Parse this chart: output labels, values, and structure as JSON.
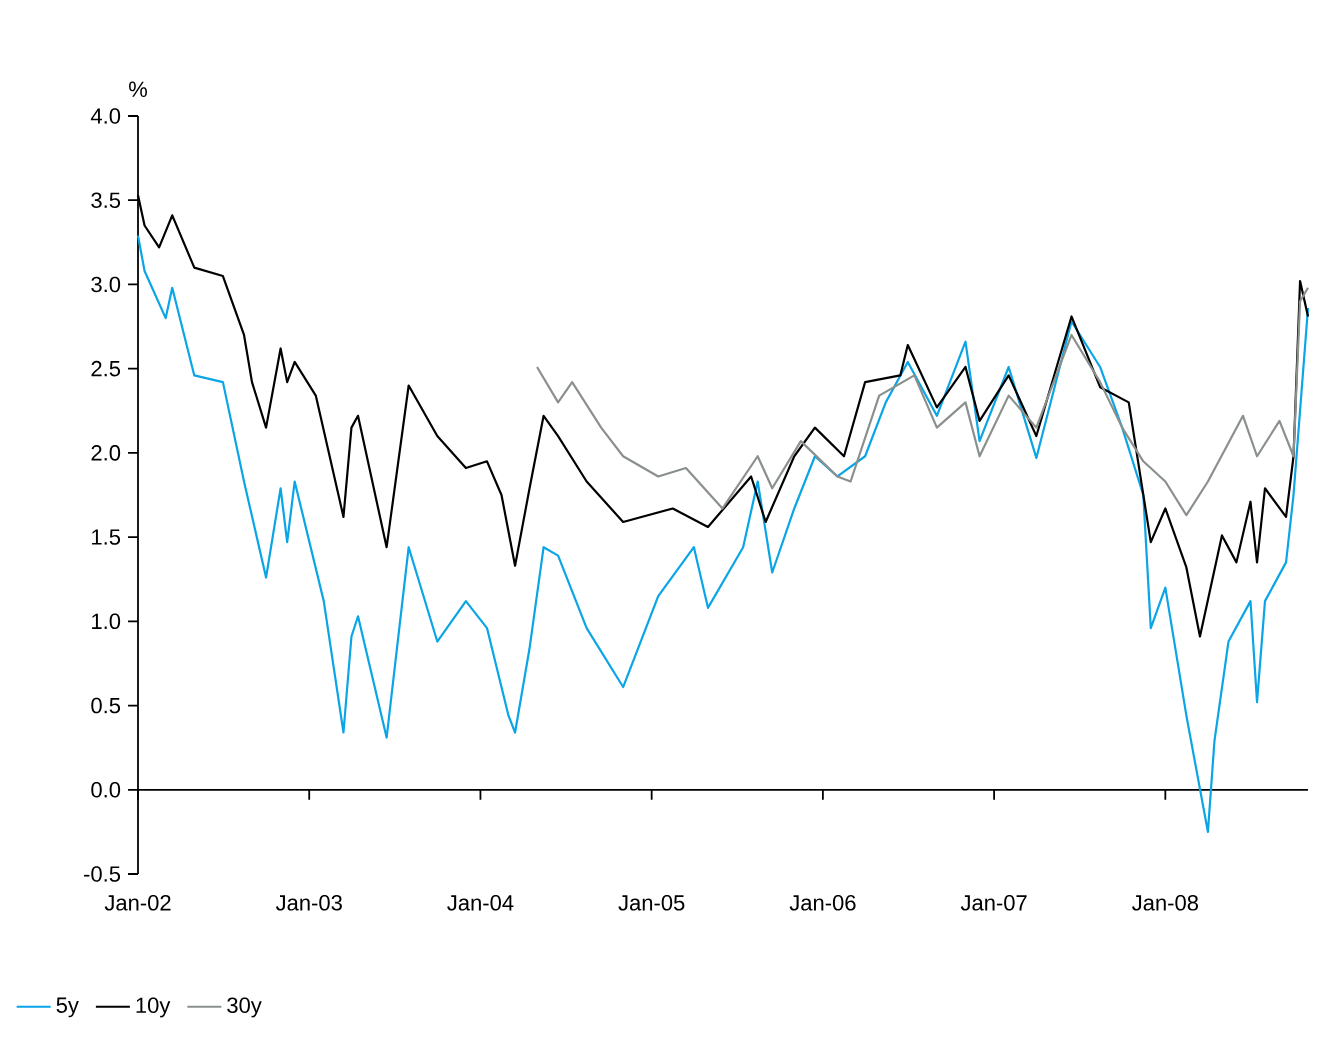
{
  "chart_data": {
    "type": "line",
    "ylabel": "%",
    "xlim": [
      "2002-01-01",
      "2008-11-01"
    ],
    "xticks": [
      {
        "value": "2002-01-01",
        "label": "Jan-02"
      },
      {
        "value": "2003-01-01",
        "label": "Jan-03"
      },
      {
        "value": "2004-01-01",
        "label": "Jan-04"
      },
      {
        "value": "2005-01-01",
        "label": "Jan-05"
      },
      {
        "value": "2006-01-01",
        "label": "Jan-06"
      },
      {
        "value": "2007-01-01",
        "label": "Jan-07"
      },
      {
        "value": "2008-01-01",
        "label": "Jan-08"
      }
    ],
    "ylim": [
      -0.5,
      4.0
    ],
    "yticks": [
      {
        "value": -0.5,
        "label": "-0.5"
      },
      {
        "value": 0,
        "label": "0.0"
      },
      {
        "value": 0.5,
        "label": "0.5"
      },
      {
        "value": 1,
        "label": "1.0"
      },
      {
        "value": 1.5,
        "label": "1.5"
      },
      {
        "value": 2,
        "label": "2.0"
      },
      {
        "value": 2.5,
        "label": "2.5"
      },
      {
        "value": 3,
        "label": "3.0"
      },
      {
        "value": 3.5,
        "label": "3.5"
      },
      {
        "value": 4,
        "label": "4.0"
      }
    ],
    "legend": "bottom left",
    "marker": "none",
    "line_style": "solid",
    "series": [
      {
        "name": "5y",
        "color": "#0aa5e6",
        "x": [
          "2002-01-01",
          "2002-01-15",
          "2002-03-01",
          "2002-03-15",
          "2002-05-01",
          "2002-07-01",
          "2002-08-15",
          "2002-10-01",
          "2002-11-01",
          "2002-11-15",
          "2002-12-01",
          "2003-02-01",
          "2003-03-15",
          "2003-04-01",
          "2003-04-15",
          "2003-06-15",
          "2003-08-01",
          "2003-10-01",
          "2003-12-01",
          "2004-01-15",
          "2004-03-01",
          "2004-03-15",
          "2004-04-15",
          "2004-05-15",
          "2004-06-15",
          "2004-08-15",
          "2004-11-01",
          "2005-01-15",
          "2005-04-01",
          "2005-05-01",
          "2005-07-15",
          "2005-08-15",
          "2005-09-15",
          "2005-11-01",
          "2005-12-15",
          "2006-02-01",
          "2006-04-01",
          "2006-05-15",
          "2006-07-01",
          "2006-09-01",
          "2006-11-01",
          "2006-12-01",
          "2007-02-01",
          "2007-04-01",
          "2007-06-15",
          "2007-08-15",
          "2007-10-01",
          "2007-11-15",
          "2007-12-01",
          "2008-01-01",
          "2008-02-15",
          "2008-04-01",
          "2008-04-15",
          "2008-05-15",
          "2008-07-01",
          "2008-07-15",
          "2008-08-01",
          "2008-09-15",
          "2008-10-01",
          "2008-11-01"
        ],
        "values": [
          3.29,
          3.08,
          2.8,
          2.98,
          2.46,
          2.42,
          1.83,
          1.26,
          1.79,
          1.47,
          1.83,
          1.12,
          0.34,
          0.91,
          1.03,
          0.31,
          1.44,
          0.88,
          1.12,
          0.96,
          0.44,
          0.34,
          0.84,
          1.44,
          1.39,
          0.96,
          0.61,
          1.15,
          1.44,
          1.08,
          1.44,
          1.83,
          1.29,
          1.67,
          1.98,
          1.86,
          1.98,
          2.3,
          2.54,
          2.22,
          2.66,
          2.07,
          2.51,
          1.97,
          2.78,
          2.51,
          2.15,
          1.75,
          0.96,
          1.2,
          0.44,
          -0.25,
          0.29,
          0.88,
          1.12,
          0.52,
          1.12,
          1.35,
          1.75,
          2.86
        ]
      },
      {
        "name": "10y",
        "color": "#000000",
        "x": [
          "2002-01-01",
          "2002-01-15",
          "2002-02-15",
          "2002-03-15",
          "2002-05-01",
          "2002-07-01",
          "2002-08-15",
          "2002-09-01",
          "2002-10-01",
          "2002-11-01",
          "2002-11-15",
          "2002-12-01",
          "2003-01-15",
          "2003-03-15",
          "2003-04-01",
          "2003-04-15",
          "2003-06-15",
          "2003-08-01",
          "2003-10-01",
          "2003-12-01",
          "2004-01-15",
          "2004-02-15",
          "2004-03-15",
          "2004-04-15",
          "2004-05-15",
          "2004-06-15",
          "2004-08-15",
          "2004-11-01",
          "2005-02-15",
          "2005-05-01",
          "2005-08-01",
          "2005-09-01",
          "2005-11-01",
          "2005-12-15",
          "2006-02-15",
          "2006-04-01",
          "2006-06-15",
          "2006-07-01",
          "2006-09-01",
          "2006-11-01",
          "2006-12-01",
          "2007-02-01",
          "2007-04-01",
          "2007-06-15",
          "2007-08-15",
          "2007-10-15",
          "2007-12-01",
          "2008-01-01",
          "2008-02-15",
          "2008-03-15",
          "2008-05-01",
          "2008-06-01",
          "2008-07-01",
          "2008-07-15",
          "2008-08-01",
          "2008-09-15",
          "2008-10-01",
          "2008-10-15",
          "2008-11-01"
        ],
        "values": [
          3.53,
          3.35,
          3.22,
          3.41,
          3.1,
          3.05,
          2.7,
          2.42,
          2.15,
          2.62,
          2.42,
          2.54,
          2.34,
          1.62,
          2.15,
          2.22,
          1.44,
          2.4,
          2.1,
          1.91,
          1.95,
          1.75,
          1.33,
          1.79,
          2.22,
          2.1,
          1.83,
          1.59,
          1.67,
          1.56,
          1.86,
          1.59,
          1.98,
          2.15,
          1.98,
          2.42,
          2.46,
          2.64,
          2.27,
          2.51,
          2.19,
          2.46,
          2.1,
          2.81,
          2.39,
          2.3,
          1.47,
          1.67,
          1.32,
          0.91,
          1.51,
          1.35,
          1.71,
          1.35,
          1.79,
          1.62,
          1.98,
          3.02,
          2.81
        ]
      },
      {
        "name": "30y",
        "color": "#8a908c",
        "x": [
          "2004-05-01",
          "2004-06-15",
          "2004-07-15",
          "2004-09-15",
          "2004-11-01",
          "2005-01-15",
          "2005-03-15",
          "2005-06-01",
          "2005-08-15",
          "2005-09-15",
          "2005-11-15",
          "2006-02-01",
          "2006-03-01",
          "2006-05-01",
          "2006-07-15",
          "2006-09-01",
          "2006-11-01",
          "2006-12-01",
          "2007-02-01",
          "2007-04-01",
          "2007-06-15",
          "2007-08-15",
          "2007-10-01",
          "2007-11-15",
          "2008-01-01",
          "2008-02-15",
          "2008-04-01",
          "2008-06-15",
          "2008-07-15",
          "2008-09-01",
          "2008-10-01",
          "2008-10-15",
          "2008-11-01"
        ],
        "values": [
          2.51,
          2.3,
          2.42,
          2.15,
          1.98,
          1.86,
          1.91,
          1.67,
          1.98,
          1.79,
          2.07,
          1.86,
          1.83,
          2.34,
          2.46,
          2.15,
          2.3,
          1.98,
          2.34,
          2.15,
          2.7,
          2.42,
          2.15,
          1.95,
          1.83,
          1.63,
          1.83,
          2.22,
          1.98,
          2.19,
          1.98,
          2.9,
          2.98
        ]
      }
    ]
  }
}
